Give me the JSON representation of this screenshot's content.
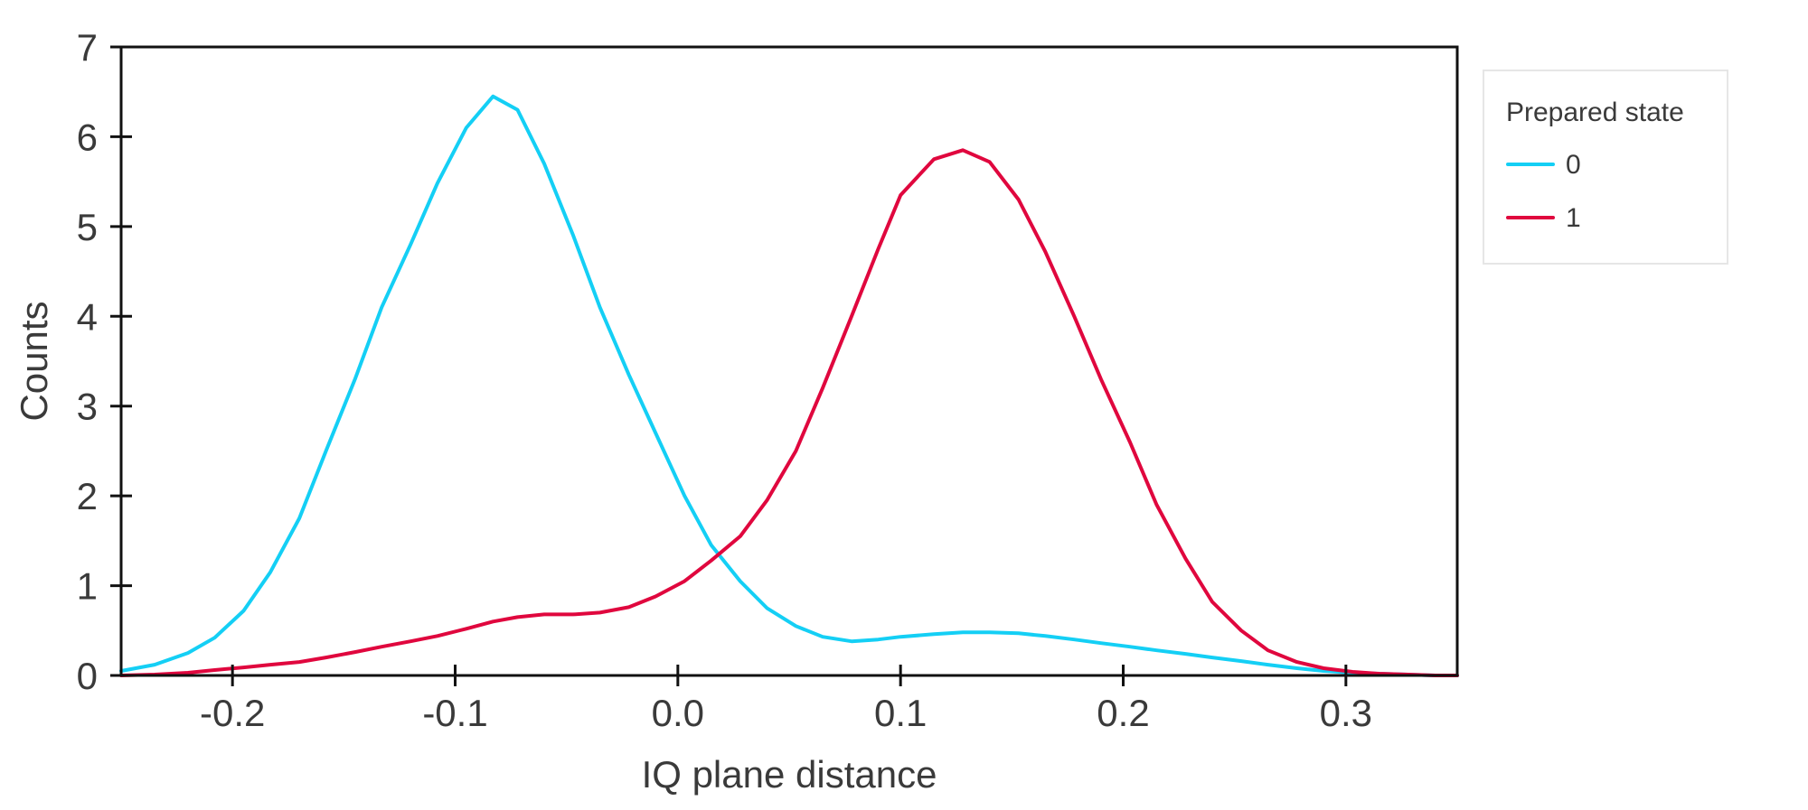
{
  "chart_data": {
    "type": "line",
    "title": "",
    "xlabel": "IQ plane distance",
    "ylabel": "Counts",
    "xlim": [
      -0.25,
      0.35
    ],
    "ylim": [
      0,
      7
    ],
    "xticks": [
      -0.2,
      -0.1,
      0.0,
      0.1,
      0.2,
      0.3
    ],
    "xtick_labels": [
      "-0.2",
      "-0.1",
      "0.0",
      "0.1",
      "0.2",
      "0.3"
    ],
    "yticks": [
      0,
      1,
      2,
      3,
      4,
      5,
      6,
      7
    ],
    "ytick_labels": [
      "0",
      "1",
      "2",
      "3",
      "4",
      "5",
      "6",
      "7"
    ],
    "grid": false,
    "legend": {
      "title": "Prepared state",
      "position": "outside-top-right"
    },
    "series": [
      {
        "name": "0",
        "color": "#14CFF5",
        "x": [
          -0.25,
          -0.235,
          -0.22,
          -0.208,
          -0.195,
          -0.183,
          -0.17,
          -0.158,
          -0.145,
          -0.133,
          -0.12,
          -0.108,
          -0.095,
          -0.083,
          -0.072,
          -0.06,
          -0.047,
          -0.035,
          -0.022,
          -0.01,
          0.003,
          0.015,
          0.028,
          0.04,
          0.053,
          0.065,
          0.078,
          0.09,
          0.1,
          0.115,
          0.128,
          0.14,
          0.153,
          0.165,
          0.178,
          0.19,
          0.203,
          0.215,
          0.228,
          0.24,
          0.253,
          0.265,
          0.278,
          0.29,
          0.303,
          0.315,
          0.328,
          0.34,
          0.35
        ],
        "values": [
          0.05,
          0.12,
          0.25,
          0.42,
          0.72,
          1.15,
          1.75,
          2.5,
          3.3,
          4.1,
          4.8,
          5.48,
          6.1,
          6.45,
          6.3,
          5.7,
          4.9,
          4.1,
          3.35,
          2.7,
          2.0,
          1.45,
          1.05,
          0.75,
          0.55,
          0.43,
          0.38,
          0.4,
          0.43,
          0.46,
          0.48,
          0.48,
          0.47,
          0.44,
          0.4,
          0.36,
          0.32,
          0.28,
          0.24,
          0.2,
          0.16,
          0.12,
          0.08,
          0.05,
          0.03,
          0.02,
          0.01,
          0.0,
          0.0
        ]
      },
      {
        "name": "1",
        "color": "#E0073E",
        "x": [
          -0.25,
          -0.235,
          -0.22,
          -0.208,
          -0.195,
          -0.183,
          -0.17,
          -0.158,
          -0.145,
          -0.133,
          -0.12,
          -0.108,
          -0.095,
          -0.083,
          -0.072,
          -0.06,
          -0.047,
          -0.035,
          -0.022,
          -0.01,
          0.003,
          0.015,
          0.028,
          0.04,
          0.053,
          0.065,
          0.078,
          0.09,
          0.1,
          0.115,
          0.128,
          0.14,
          0.153,
          0.165,
          0.178,
          0.19,
          0.203,
          0.215,
          0.228,
          0.24,
          0.253,
          0.265,
          0.278,
          0.29,
          0.303,
          0.315,
          0.328,
          0.34,
          0.35
        ],
        "values": [
          0.0,
          0.01,
          0.03,
          0.06,
          0.09,
          0.12,
          0.15,
          0.2,
          0.26,
          0.32,
          0.38,
          0.44,
          0.52,
          0.6,
          0.65,
          0.68,
          0.68,
          0.7,
          0.76,
          0.88,
          1.05,
          1.28,
          1.55,
          1.95,
          2.5,
          3.2,
          4.0,
          4.75,
          5.35,
          5.75,
          5.85,
          5.72,
          5.3,
          4.72,
          4.0,
          3.3,
          2.6,
          1.9,
          1.3,
          0.82,
          0.5,
          0.28,
          0.15,
          0.08,
          0.04,
          0.02,
          0.01,
          0.0,
          0.0
        ]
      }
    ]
  }
}
